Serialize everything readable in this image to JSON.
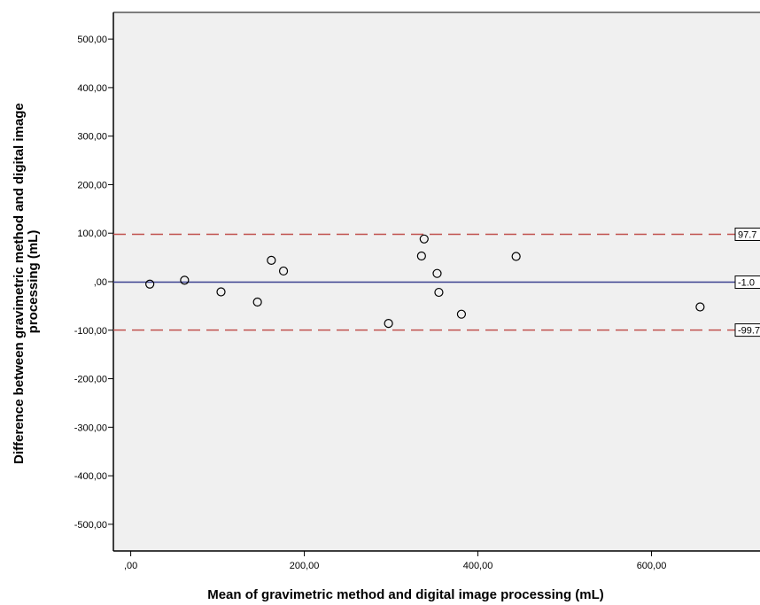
{
  "chart_data": {
    "type": "scatter",
    "title": "",
    "xlabel": "Mean of gravimetric method and digital image processing (mL)",
    "ylabel_line1": "Difference between gravimetric method and digital image",
    "ylabel_line2": "processing (mL)",
    "xlim": [
      -20,
      725
    ],
    "ylim": [
      -555,
      555
    ],
    "x_ticks": [
      0,
      200,
      400,
      600
    ],
    "x_tick_labels": [
      ",00",
      "200,00",
      "400,00",
      "600,00"
    ],
    "y_ticks": [
      500,
      400,
      300,
      200,
      100,
      0,
      -100,
      -200,
      -300,
      -400,
      -500
    ],
    "y_tick_labels": [
      "500,00",
      "400,00",
      "300,00",
      "200,00",
      "100,00",
      ",00",
      "-100,00",
      "-200,00",
      "-300,00",
      "-400,00",
      "-500,00"
    ],
    "grid": false,
    "points": [
      {
        "x": 22,
        "y": -5
      },
      {
        "x": 62,
        "y": 3
      },
      {
        "x": 104,
        "y": -21
      },
      {
        "x": 146,
        "y": -42
      },
      {
        "x": 162,
        "y": 44
      },
      {
        "x": 176,
        "y": 22
      },
      {
        "x": 297,
        "y": -86
      },
      {
        "x": 335,
        "y": 53
      },
      {
        "x": 338,
        "y": 88
      },
      {
        "x": 353,
        "y": 17
      },
      {
        "x": 355,
        "y": -22
      },
      {
        "x": 381,
        "y": -67
      },
      {
        "x": 444,
        "y": 52
      },
      {
        "x": 656,
        "y": -52
      }
    ],
    "reference_lines": [
      {
        "name": "upper-limit",
        "y": 97.7,
        "label": "97.7",
        "style": "dashed",
        "color": "#c0504d"
      },
      {
        "name": "mean-difference",
        "y": -1.0,
        "label": "-1.0",
        "style": "solid",
        "color": "#3a3f8f"
      },
      {
        "name": "lower-limit",
        "y": -99.7,
        "label": "-99.7",
        "style": "dashed",
        "color": "#c0504d"
      }
    ]
  },
  "colors": {
    "plot_background": "#f0f0f0",
    "axis": "#000000",
    "frame": "#555555",
    "marker_stroke": "#000000"
  }
}
